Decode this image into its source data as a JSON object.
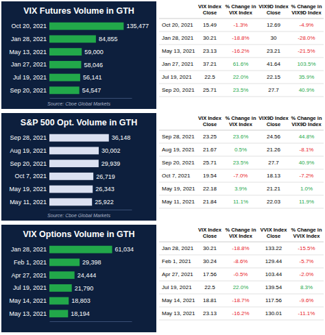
{
  "chart_data": [
    {
      "type": "bar",
      "orientation": "horizontal",
      "title": "VIX Futures Volume in GTH",
      "categories": [
        "Oct 20, 2021",
        "Jan 28, 2021",
        "May 13, 2021",
        "Jan 27, 2021",
        "Jul 19, 2021",
        "Sep 20, 2021"
      ],
      "values": [
        135477,
        84855,
        59000,
        58046,
        56141,
        54547
      ],
      "value_labels": [
        "135,477",
        "84,855",
        "59,000",
        "58,046",
        "56,141",
        "54,547"
      ],
      "color": "#22a84a",
      "data_labels": true,
      "tick_labels": "y",
      "xlim": [
        0,
        150000
      ],
      "annotations": [
        "Source: Cboe Global Markets"
      ]
    },
    {
      "type": "bar",
      "orientation": "horizontal",
      "title": "S&P 500 Opt. Volume in GTH",
      "categories": [
        "Sep 28, 2021",
        "Aug 19, 2021",
        "Sep 20, 2021",
        "Oct 7, 2021",
        "May 19, 2021",
        "May 11, 2021"
      ],
      "values": [
        36148,
        30002,
        29939,
        26719,
        26343,
        25922
      ],
      "value_labels": [
        "36,148",
        "30,002",
        "29,939",
        "26,719",
        "26,343",
        "25,922"
      ],
      "color": "#dbe1f1",
      "data_labels": true,
      "tick_labels": "y",
      "xlim": [
        0,
        50000
      ],
      "annotations": [
        "Source: Cboe Global Markets"
      ]
    },
    {
      "type": "bar",
      "orientation": "horizontal",
      "title": "VIX Options Volume in GTH",
      "categories": [
        "Jan 28, 2021",
        "Feb 1, 2021",
        "Apr 27, 2021",
        "Jul 19, 2021",
        "May 14, 2021",
        "May 13, 2021"
      ],
      "values": [
        61034,
        29398,
        24444,
        21790,
        18803,
        18194
      ],
      "value_labels": [
        "61,034",
        "29,398",
        "24,444",
        "21,790",
        "18,803",
        "18,194"
      ],
      "color": "#22a84a",
      "data_labels": true,
      "tick_labels": "y",
      "xlim": [
        0,
        80000
      ]
    }
  ],
  "tables": [
    {
      "headers": [
        "VIX Index Close",
        "% Change in VIX Index",
        "VIX9D Index Close",
        "% Change in VIX9D Index"
      ],
      "rows": [
        [
          "Oct 20, 2021",
          "15.49",
          "-1.3%",
          "12.69",
          "-4.9%"
        ],
        [
          "Jan 28, 2021",
          "30.21",
          "-18.8%",
          "30",
          "-28.0%"
        ],
        [
          "May 13, 2021",
          "23.13",
          "-16.2%",
          "23.21",
          "-21.5%"
        ],
        [
          "Jan 27, 2021",
          "37.21",
          "61.6%",
          "41.64",
          "103.5%"
        ],
        [
          "Jul 19, 2021",
          "22.5",
          "22.0%",
          "22.15",
          "35.9%"
        ],
        [
          "Sep 20, 2021",
          "25.71",
          "23.5%",
          "27.7",
          "40.9%"
        ]
      ]
    },
    {
      "headers": [
        "VIX Index Close",
        "% Change in VIX Index",
        "VIX9D Index Close",
        "% Change in VIX9D Index"
      ],
      "rows": [
        [
          "Sep 28, 2021",
          "23.25",
          "23.6%",
          "24.56",
          "44.8%"
        ],
        [
          "Aug 19, 2021",
          "21.67",
          "0.5%",
          "21.26",
          "-8.1%"
        ],
        [
          "Sep 20, 2021",
          "25.71",
          "23.5%",
          "27.7",
          "40.9%"
        ],
        [
          "Oct 7, 2021",
          "19.54",
          "-7.0%",
          "18.13",
          "-7.2%"
        ],
        [
          "May 19, 2021",
          "22.18",
          "3.9%",
          "21.21",
          "1.0%"
        ],
        [
          "May 11, 2021",
          "21.84",
          "11.1%",
          "22.03",
          "11.9%"
        ]
      ]
    },
    {
      "headers": [
        "VIX Index Close",
        "% Change in VIX Index",
        "VVIX Index Close",
        "% Change in VVIX Index"
      ],
      "rows": [
        [
          "Jan 28, 2021",
          "30.21",
          "-18.8%",
          "133.22",
          "-15.5%"
        ],
        [
          "Feb 1, 2021",
          "30.24",
          "-8.6%",
          "129.44",
          "-5.7%"
        ],
        [
          "Apr 27, 2021",
          "17.56",
          "-0.5%",
          "103.44",
          "-2.0%"
        ],
        [
          "Jul 19, 2021",
          "22.5",
          "22.0%",
          "139.54",
          "8.3%"
        ],
        [
          "May 14, 2021",
          "18.81",
          "-18.7%",
          "117.56",
          "-9.6%"
        ],
        [
          "May 13, 2021",
          "23.13",
          "-16.2%",
          "130.01",
          "-11.1%"
        ]
      ]
    }
  ]
}
